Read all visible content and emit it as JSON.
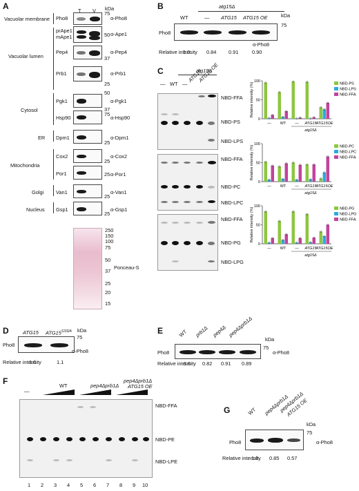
{
  "panels": {
    "A": "A",
    "B": "B",
    "C": "C",
    "D": "D",
    "E": "E",
    "F": "F",
    "G": "G"
  },
  "panelA": {
    "lanes": [
      "T",
      "V"
    ],
    "kda": "kDa",
    "groups": [
      "Vacuolar membrane",
      "Vacuolar lumen",
      "Cytosol",
      "ER",
      "Mitochondria",
      "Golgi",
      "Nucleus"
    ],
    "proteins": [
      "Pho8",
      "prApe1",
      "mApe1",
      "Pep4",
      "Prb1",
      "Pgk1",
      "Hsp90",
      "Dpm1",
      "Cox2",
      "Por1",
      "Van1",
      "Gsp1"
    ],
    "antibodies": [
      "α-Pho8",
      "α-Ape1",
      "α-Pep4",
      "α-Prb1",
      "α-Pgk1",
      "α-Hsp90",
      "α-Dpm1",
      "α-Cox2",
      "α-Por1",
      "α-Van1",
      "α-Gsp1",
      "Ponceau-S"
    ],
    "markers": [
      "75",
      "50",
      "37",
      "25",
      "50",
      "37",
      "75",
      "25",
      "25",
      "25",
      "25",
      "25"
    ],
    "ladder": [
      "250",
      "150",
      "100",
      "75",
      "50",
      "37",
      "25",
      "20",
      "15"
    ]
  },
  "panelB": {
    "genotype": "atg15Δ",
    "lanes": [
      "WT",
      "—",
      "ATG15",
      "ATG15 OE"
    ],
    "protein": "Pho8",
    "antibody": "α-Pho8",
    "marker": "75",
    "kda": "kDa",
    "rel_label": "Relative intensity",
    "values": [
      "1.0",
      "0.84",
      "0.91",
      "0.90"
    ]
  },
  "panelC": {
    "genotype": "atg15Δ",
    "lanes": [
      "—",
      "WT",
      "—",
      "ATG15",
      "ATG15 OE"
    ],
    "gel1": [
      "NBD-FFA",
      "NBD-PS",
      "NBD-LPS"
    ],
    "gel2": [
      "NBD-FFA",
      "NBD-PC",
      "NBD-LPC"
    ],
    "gel3": [
      "NBD-FFA",
      "NBD-PG",
      "NBD-LPG"
    ],
    "ylabel": "Relative intensity (%)",
    "xcats": [
      "—",
      "WT",
      "ATG15",
      "ATG15OE"
    ],
    "xgroup": "atg15Δ",
    "colors": {
      "substrate": "#8dc63f",
      "lyso": "#29abe2",
      "ffa": "#c1449b"
    }
  },
  "chart_data": [
    {
      "type": "bar",
      "ylabel": "Relative intensity (%)",
      "ylim": [
        0,
        100
      ],
      "categories": [
        "—",
        "WT",
        "—",
        "ATG15",
        "ATG15OE"
      ],
      "series": [
        {
          "name": "NBD-PS",
          "values": [
            95,
            70,
            98,
            97,
            30
          ]
        },
        {
          "name": "NBD-LPS",
          "values": [
            2,
            5,
            1,
            1,
            25
          ]
        },
        {
          "name": "NBD-FFA",
          "values": [
            10,
            20,
            3,
            4,
            42
          ]
        }
      ]
    },
    {
      "type": "bar",
      "ylabel": "Relative intensity (%)",
      "ylim": [
        0,
        100
      ],
      "categories": [
        "—",
        "WT",
        "—",
        "ATG15",
        "ATG15OE"
      ],
      "series": [
        {
          "name": "NBD-PC",
          "values": [
            52,
            40,
            50,
            45,
            8
          ]
        },
        {
          "name": "NBD-LPC",
          "values": [
            5,
            7,
            5,
            6,
            24
          ]
        },
        {
          "name": "NBD-FFA",
          "values": [
            42,
            48,
            44,
            45,
            66
          ]
        }
      ]
    },
    {
      "type": "bar",
      "ylabel": "Relative intensity (%)",
      "ylim": [
        0,
        100
      ],
      "categories": [
        "—",
        "WT",
        "—",
        "ATG15",
        "ATG15OE"
      ],
      "series": [
        {
          "name": "NBD-PG",
          "values": [
            85,
            60,
            85,
            78,
            32
          ]
        },
        {
          "name": "NBD-LPG",
          "values": [
            3,
            10,
            3,
            4,
            20
          ]
        },
        {
          "name": "NBD-FFA",
          "values": [
            15,
            25,
            15,
            16,
            50
          ]
        }
      ]
    }
  ],
  "panelD": {
    "lanes": [
      "ATG15",
      "ATG15S332A"
    ],
    "lane2_main": "ATG15",
    "lane2_sup": "S332A",
    "protein": "Pho8",
    "antibody": "α-Pho8",
    "marker": "75",
    "kda": "kDa",
    "rel_label": "Relative intensity",
    "values": [
      "1.0",
      "1.1"
    ]
  },
  "panelE": {
    "lanes": [
      "WT",
      "prb1Δ",
      "pep4Δ",
      "pep4Δprb1Δ"
    ],
    "protein": "Pho8",
    "antibody": "α-Pho8",
    "marker": "75",
    "kda": "kDa",
    "rel_label": "Relative intensity",
    "values": [
      "1.0",
      "0.82",
      "0.91",
      "0.89"
    ]
  },
  "panelF": {
    "groups": [
      "—",
      "WT",
      "pep4Δprb1Δ",
      "pep4Δprb1Δ",
      "ATG15 OE"
    ],
    "labels": [
      "NBD-FFA",
      "NBD-PE",
      "NBD-LPE"
    ],
    "lanes": [
      "1",
      "2",
      "3",
      "4",
      "5",
      "6",
      "7",
      "8",
      "9",
      "10"
    ]
  },
  "panelG": {
    "lanes": [
      "WT",
      "pep4Δprb1Δ",
      "pep4Δprb1Δ",
      "ATG15 OE"
    ],
    "protein": "Pho8",
    "antibody": "α-Pho8",
    "marker": "75",
    "kda": "kDa",
    "rel_label": "Relative intensity",
    "values": [
      "1.0",
      "0.85",
      "0.57"
    ]
  }
}
